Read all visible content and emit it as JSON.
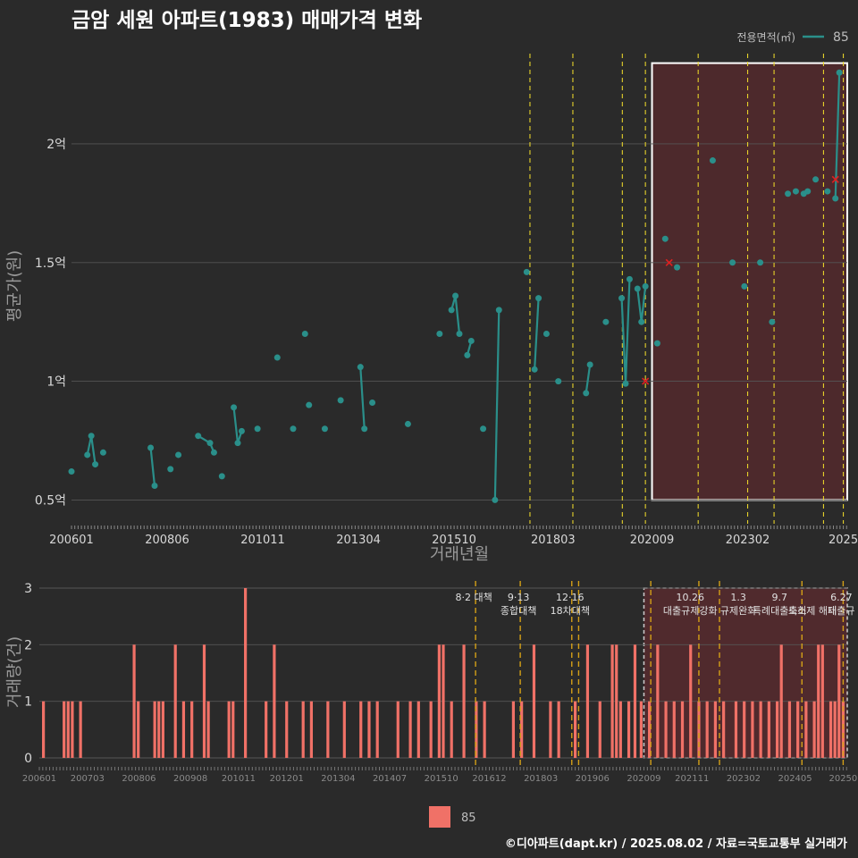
{
  "title": "금암 세원 아파트(1983) 매매가격 변화",
  "footer": "©디아파트(dapt.kr) / 2025.08.02 / 자료=국토교통부 실거래가",
  "colors": {
    "price": "#2a8f8a",
    "volume": "#f07167",
    "highlight": "#5a2a2e",
    "policy": "#e6d22a",
    "cancel": "#e02020"
  },
  "chart_data": [
    {
      "type": "line",
      "title": "금암 세원 아파트(1983) 매매가격 변화",
      "xlabel": "거래년월",
      "ylabel": "평균가(원)",
      "ylim": [
        0.4,
        2.38
      ],
      "y_unit": "억",
      "y_ticks": [
        {
          "value": 0.5,
          "label": "0.5억"
        },
        {
          "value": 1.0,
          "label": "1억"
        },
        {
          "value": 1.5,
          "label": "1.5억"
        },
        {
          "value": 2.0,
          "label": "2억"
        }
      ],
      "x_ticks": [
        {
          "t": 2006.0,
          "label": "200601"
        },
        {
          "t": 2008.417,
          "label": "200806"
        },
        {
          "t": 2010.833,
          "label": "201011"
        },
        {
          "t": 2013.25,
          "label": "201304"
        },
        {
          "t": 2015.667,
          "label": "201510"
        },
        {
          "t": 2018.167,
          "label": "201803"
        },
        {
          "t": 2020.667,
          "label": "202009"
        },
        {
          "t": 2023.083,
          "label": "202302"
        },
        {
          "t": 2025.5,
          "label": "2025"
        }
      ],
      "xlim": [
        2006.0,
        2025.6
      ],
      "legend": {
        "title": "전용면적(㎡)",
        "label": "85",
        "position": "top-right"
      },
      "policy_dates": [
        2017.583,
        2018.667,
        2019.917,
        2020.5,
        2021.833,
        2023.083,
        2023.75,
        2025.0,
        2025.5
      ],
      "highlight_range": [
        2020.667,
        2025.6
      ],
      "series": [
        {
          "name": "85",
          "segments": [
            [
              [
                2006.0,
                0.62
              ]
            ],
            [
              [
                2006.4,
                0.69
              ],
              [
                2006.5,
                0.77
              ],
              [
                2006.6,
                0.65
              ]
            ],
            [
              [
                2006.8,
                0.7
              ]
            ],
            [
              [
                2008.0,
                0.72
              ],
              [
                2008.1,
                0.56
              ]
            ],
            [
              [
                2008.5,
                0.63
              ]
            ],
            [
              [
                2008.7,
                0.69
              ]
            ],
            [
              [
                2009.2,
                0.77
              ],
              [
                2009.5,
                0.74
              ],
              [
                2009.6,
                0.7
              ]
            ],
            [
              [
                2009.8,
                0.6
              ]
            ],
            [
              [
                2010.1,
                0.89
              ],
              [
                2010.2,
                0.74
              ],
              [
                2010.3,
                0.79
              ]
            ],
            [
              [
                2010.7,
                0.8
              ]
            ],
            [
              [
                2011.2,
                1.1
              ]
            ],
            [
              [
                2011.6,
                0.8
              ]
            ],
            [
              [
                2011.9,
                1.2
              ]
            ],
            [
              [
                2012.0,
                0.9
              ]
            ],
            [
              [
                2012.4,
                0.8
              ]
            ],
            [
              [
                2012.8,
                0.92
              ]
            ],
            [
              [
                2013.3,
                1.06
              ],
              [
                2013.4,
                0.8
              ]
            ],
            [
              [
                2013.6,
                0.91
              ]
            ],
            [
              [
                2014.5,
                0.82
              ]
            ],
            [
              [
                2015.3,
                1.2
              ]
            ],
            [
              [
                2015.6,
                1.3
              ],
              [
                2015.7,
                1.36
              ],
              [
                2015.8,
                1.2
              ]
            ],
            [
              [
                2016.0,
                1.11
              ],
              [
                2016.1,
                1.17
              ]
            ],
            [
              [
                2016.4,
                0.8
              ]
            ],
            [
              [
                2016.7,
                0.5
              ],
              [
                2016.8,
                1.3
              ]
            ],
            [
              [
                2017.5,
                1.46
              ]
            ],
            [
              [
                2017.7,
                1.05
              ],
              [
                2017.8,
                1.35
              ]
            ],
            [
              [
                2018.0,
                1.2
              ]
            ],
            [
              [
                2018.3,
                1.0
              ]
            ],
            [
              [
                2019.0,
                0.95
              ],
              [
                2019.1,
                1.07
              ]
            ],
            [
              [
                2019.5,
                1.25
              ]
            ],
            [
              [
                2019.9,
                1.35
              ],
              [
                2020.0,
                0.99
              ],
              [
                2020.1,
                1.43
              ]
            ],
            [
              [
                2020.3,
                1.39
              ],
              [
                2020.4,
                1.25
              ],
              [
                2020.5,
                1.4
              ]
            ],
            [
              [
                2020.8,
                1.16
              ]
            ],
            [
              [
                2021.0,
                1.6
              ]
            ],
            [
              [
                2021.3,
                1.48
              ]
            ],
            [
              [
                2022.2,
                1.93
              ]
            ],
            [
              [
                2022.7,
                1.5
              ]
            ],
            [
              [
                2023.0,
                1.4
              ]
            ],
            [
              [
                2023.4,
                1.5
              ]
            ],
            [
              [
                2023.7,
                1.25
              ]
            ],
            [
              [
                2024.1,
                1.79
              ]
            ],
            [
              [
                2024.3,
                1.8
              ]
            ],
            [
              [
                2024.5,
                1.79
              ],
              [
                2024.6,
                1.8
              ]
            ],
            [
              [
                2024.8,
                1.85
              ]
            ],
            [
              [
                2025.1,
                1.8
              ]
            ],
            [
              [
                2025.3,
                1.77
              ],
              [
                2025.4,
                2.3
              ]
            ]
          ]
        }
      ],
      "cancelled_points": [
        [
          2020.5,
          1.0
        ],
        [
          2021.1,
          1.5
        ],
        [
          2025.3,
          1.85
        ]
      ]
    },
    {
      "type": "bar",
      "ylabel": "거래량(건)",
      "ylim": [
        0,
        3
      ],
      "y_ticks": [
        0,
        1,
        2,
        3
      ],
      "xlim": [
        2006.0,
        2025.6
      ],
      "x_ticks": [
        {
          "t": 2006.0,
          "label": "200601"
        },
        {
          "t": 2007.167,
          "label": "200703"
        },
        {
          "t": 2008.417,
          "label": "200806"
        },
        {
          "t": 2009.667,
          "label": "200908"
        },
        {
          "t": 2010.833,
          "label": "201011"
        },
        {
          "t": 2012.0,
          "label": "201201"
        },
        {
          "t": 2013.25,
          "label": "201304"
        },
        {
          "t": 2014.5,
          "label": "201407"
        },
        {
          "t": 2015.75,
          "label": "201510"
        },
        {
          "t": 2016.917,
          "label": "201612"
        },
        {
          "t": 2018.167,
          "label": "201803"
        },
        {
          "t": 2019.417,
          "label": "201906"
        },
        {
          "t": 2020.667,
          "label": "202009"
        },
        {
          "t": 2021.833,
          "label": "202111"
        },
        {
          "t": 2023.083,
          "label": "202302"
        },
        {
          "t": 2024.333,
          "label": "202405"
        },
        {
          "t": 2025.5,
          "label": "20250"
        }
      ],
      "legend": {
        "label": "85",
        "position": "bottom"
      },
      "policy_dates": [
        2016.583,
        2017.667,
        2018.917,
        2019.083,
        2020.833,
        2022.0,
        2022.5,
        2024.5,
        2025.5
      ],
      "highlight_range": [
        2020.667,
        2025.6
      ],
      "policy_labels": [
        {
          "t": 2016.583,
          "lines": [
            "8·2 대책"
          ]
        },
        {
          "t": 2017.667,
          "lines": [
            "9·13",
            "종합대책"
          ]
        },
        {
          "t": 2018.917,
          "lines": [
            "12·16",
            "18차대책"
          ]
        },
        {
          "t": 2021.833,
          "lines": [
            "10.26",
            "대출규제강화"
          ]
        },
        {
          "t": 2023.0,
          "lines": [
            "1.3",
            "규제완화"
          ]
        },
        {
          "t": 2024.0,
          "lines": [
            "9.7",
            "특례대출축소"
          ]
        },
        {
          "t": 2024.8,
          "lines": [
            "",
            "토허제 해제"
          ]
        },
        {
          "t": 2025.5,
          "lines": [
            "6.27",
            "대출규"
          ]
        }
      ],
      "bars": [
        [
          2006.1,
          1
        ],
        [
          2006.6,
          1
        ],
        [
          2006.7,
          1
        ],
        [
          2006.8,
          1
        ],
        [
          2007.0,
          1
        ],
        [
          2008.3,
          2
        ],
        [
          2008.4,
          1
        ],
        [
          2008.8,
          1
        ],
        [
          2008.9,
          1
        ],
        [
          2009.0,
          1
        ],
        [
          2009.3,
          2
        ],
        [
          2009.5,
          1
        ],
        [
          2009.7,
          1
        ],
        [
          2010.0,
          2
        ],
        [
          2010.1,
          1
        ],
        [
          2010.6,
          1
        ],
        [
          2010.7,
          1
        ],
        [
          2011.0,
          3
        ],
        [
          2011.5,
          1
        ],
        [
          2011.7,
          2
        ],
        [
          2012.0,
          1
        ],
        [
          2012.4,
          1
        ],
        [
          2012.6,
          1
        ],
        [
          2013.0,
          1
        ],
        [
          2013.4,
          1
        ],
        [
          2013.8,
          1
        ],
        [
          2014.0,
          1
        ],
        [
          2014.2,
          1
        ],
        [
          2014.7,
          1
        ],
        [
          2015.0,
          1
        ],
        [
          2015.2,
          1
        ],
        [
          2015.5,
          1
        ],
        [
          2015.7,
          2
        ],
        [
          2015.8,
          2
        ],
        [
          2016.0,
          1
        ],
        [
          2016.3,
          2
        ],
        [
          2016.6,
          1
        ],
        [
          2016.8,
          1
        ],
        [
          2017.5,
          1
        ],
        [
          2017.7,
          1
        ],
        [
          2018.0,
          2
        ],
        [
          2018.4,
          1
        ],
        [
          2018.6,
          1
        ],
        [
          2019.0,
          1
        ],
        [
          2019.3,
          2
        ],
        [
          2019.6,
          1
        ],
        [
          2019.9,
          2
        ],
        [
          2020.0,
          2
        ],
        [
          2020.1,
          1
        ],
        [
          2020.3,
          1
        ],
        [
          2020.45,
          2
        ],
        [
          2020.6,
          1
        ],
        [
          2020.8,
          1
        ],
        [
          2021.0,
          2
        ],
        [
          2021.2,
          1
        ],
        [
          2021.4,
          1
        ],
        [
          2021.6,
          1
        ],
        [
          2021.8,
          2
        ],
        [
          2022.0,
          1
        ],
        [
          2022.2,
          1
        ],
        [
          2022.4,
          1
        ],
        [
          2022.6,
          1
        ],
        [
          2022.9,
          1
        ],
        [
          2023.1,
          1
        ],
        [
          2023.3,
          1
        ],
        [
          2023.5,
          1
        ],
        [
          2023.7,
          1
        ],
        [
          2023.9,
          1
        ],
        [
          2024.0,
          2
        ],
        [
          2024.2,
          1
        ],
        [
          2024.4,
          1
        ],
        [
          2024.6,
          1
        ],
        [
          2024.8,
          1
        ],
        [
          2024.9,
          2
        ],
        [
          2025.0,
          2
        ],
        [
          2025.2,
          1
        ],
        [
          2025.3,
          1
        ],
        [
          2025.4,
          2
        ],
        [
          2025.5,
          1
        ]
      ]
    }
  ]
}
